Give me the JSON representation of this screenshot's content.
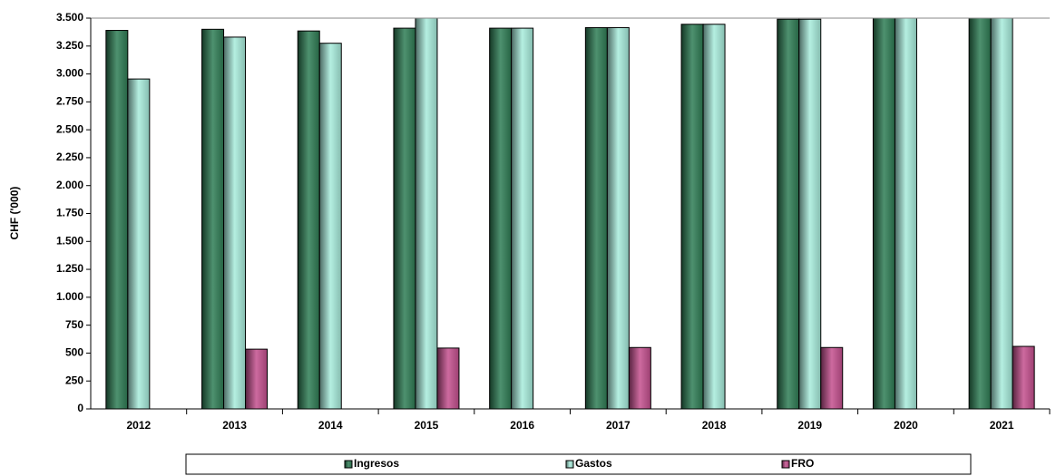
{
  "chart_data": {
    "type": "bar",
    "y_label": "CHF ('000)",
    "categories": [
      "2012",
      "2013",
      "2014",
      "2015",
      "2016",
      "2017",
      "2018",
      "2019",
      "2020",
      "2021"
    ],
    "series": [
      {
        "name": "Ingresos",
        "color": "#2f7d55",
        "values": [
          3390,
          3400,
          3385,
          3410,
          3410,
          3415,
          3445,
          3490,
          3600,
          3600
        ]
      },
      {
        "name": "Gastos",
        "color": "#a8ecdc",
        "values": [
          2955,
          3330,
          3275,
          3600,
          3410,
          3415,
          3445,
          3490,
          3600,
          3600
        ]
      },
      {
        "name": "FRO",
        "color": "#c4508e",
        "values": [
          null,
          535,
          null,
          545,
          null,
          550,
          null,
          550,
          null,
          560
        ]
      }
    ],
    "ylim": [
      0,
      3500
    ],
    "yticks": [
      0,
      250,
      500,
      750,
      {
        "value": 1000,
        "label": "1.000"
      },
      {
        "value": 1250,
        "label": "1.250"
      },
      {
        "value": 1500,
        "label": "1.500"
      },
      {
        "value": 1750,
        "label": "1.750"
      },
      {
        "value": 2000,
        "label": "2.000"
      },
      {
        "value": 2250,
        "label": "2.250"
      },
      {
        "value": 2500,
        "label": "2.500"
      },
      {
        "value": 2750,
        "label": "2.750"
      },
      {
        "value": 3000,
        "label": "3.000"
      },
      {
        "value": 3250,
        "label": "3.250"
      },
      {
        "value": 3500,
        "label": "3.500"
      }
    ],
    "legend": "bottom"
  }
}
